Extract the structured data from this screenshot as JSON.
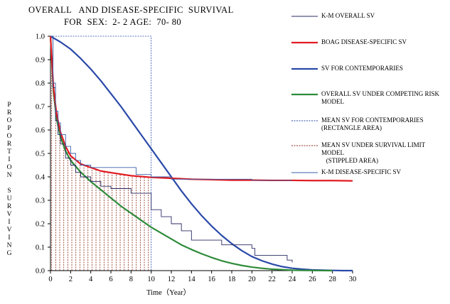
{
  "title_line1": "OVERALL   AND DISEASE-SPECIFIC  SURVIVAL",
  "title_line2": "FOR  SEX:  2- 2 AGE:  70- 80",
  "legend": [
    {
      "key": "km_overall",
      "text": "K-M OVERALL SV",
      "color": "#2a2a66",
      "style": "thin"
    },
    {
      "key": "boag",
      "text": "BOAG DISEASE-SPECIFIC SV",
      "color": "#e11b22",
      "style": "thick"
    },
    {
      "key": "contemporaries",
      "text": "SV FOR CONTEMPORARIES",
      "color": "#2a4aa8",
      "style": "thick"
    },
    {
      "key": "competing",
      "text": "OVERALL SV UNDER COMPETING RISK\nMODEL",
      "color": "#2e8b3a",
      "style": "thick"
    },
    {
      "key": "mean_contemp",
      "text": "MEAN SV FOR CONTEMPORARIES\n(RECTANGLE AREA)",
      "color": "#2a4aa8",
      "style": "dashed"
    },
    {
      "key": "mean_limit",
      "text": "MEAN SV UNDER SURVIVAL LIMIT\nMODEL\n   (STIPPLED AREA)",
      "color": "#8b2a1a",
      "style": "dashed"
    },
    {
      "key": "km_disease",
      "text": "K-M DISEASE-SPECIFIC SV",
      "color": "#3a5fa8",
      "style": "thin"
    }
  ],
  "ylabel_letters": [
    "P",
    "R",
    "O",
    "P",
    "O",
    "R",
    "T",
    "I",
    "O",
    "N",
    "",
    "S",
    "U",
    "R",
    "V",
    "I",
    "V",
    "I",
    "N",
    "G"
  ],
  "xlabel": "Time（Year）",
  "chart_data": {
    "type": "line",
    "title": "OVERALL AND DISEASE-SPECIFIC SURVIVAL FOR SEX: 2- 2 AGE: 70- 80",
    "xlabel": "Time（Year）",
    "ylabel": "PROPORTION SURVIVING",
    "xlim": [
      0,
      30
    ],
    "ylim": [
      0,
      1.0
    ],
    "x_ticks": [
      0,
      2,
      4,
      6,
      8,
      10,
      12,
      14,
      16,
      18,
      20,
      22,
      24,
      26,
      28,
      30
    ],
    "y_ticks": [
      0.0,
      0.1,
      0.2,
      0.3,
      0.4,
      0.5,
      0.6,
      0.7,
      0.8,
      0.9,
      1.0
    ],
    "y_tick_labels": [
      "0.0",
      "0.1",
      "0.2",
      "0.3",
      "0.4",
      "0.5",
      "0.6",
      "0.7",
      "0.8",
      "0.9",
      "1.0"
    ],
    "series": [
      {
        "name": "K-M OVERALL SV",
        "kind": "step",
        "color": "#2a2a66",
        "x": [
          0,
          0.25,
          0.5,
          0.75,
          1.0,
          1.5,
          2.0,
          2.5,
          3.0,
          4.0,
          5.0,
          6.0,
          8.0,
          10.0,
          11.0,
          12.0,
          13.0,
          14.0,
          17.0,
          20.0,
          20.3,
          22.0,
          23.5,
          24.0
        ],
        "y": [
          1.0,
          0.78,
          0.64,
          0.58,
          0.54,
          0.48,
          0.45,
          0.42,
          0.4,
          0.38,
          0.36,
          0.35,
          0.33,
          0.26,
          0.23,
          0.2,
          0.17,
          0.13,
          0.11,
          0.095,
          0.065,
          0.065,
          0.045,
          0.035
        ]
      },
      {
        "name": "BOAG DISEASE-SPECIFIC SV",
        "kind": "smooth",
        "color": "#e11b22",
        "x": [
          0,
          0.3,
          0.6,
          1,
          1.5,
          2,
          3,
          4,
          5,
          6,
          8,
          10,
          12,
          14,
          16,
          18,
          20,
          22,
          24,
          26,
          28,
          30
        ],
        "y": [
          1.0,
          0.78,
          0.67,
          0.59,
          0.53,
          0.49,
          0.455,
          0.44,
          0.425,
          0.418,
          0.405,
          0.398,
          0.394,
          0.39,
          0.388,
          0.386,
          0.386,
          0.385,
          0.385,
          0.384,
          0.384,
          0.383
        ]
      },
      {
        "name": "SV FOR CONTEMPORARIES",
        "kind": "smooth",
        "color": "#2a4aa8",
        "x": [
          0,
          1,
          2,
          3,
          4,
          5,
          6,
          7,
          8,
          9,
          10,
          11,
          12,
          13,
          14,
          15,
          16,
          17,
          18,
          19,
          20,
          21,
          22,
          23,
          24,
          25,
          26,
          27,
          28,
          29,
          30
        ],
        "y": [
          1.0,
          0.975,
          0.945,
          0.905,
          0.86,
          0.81,
          0.755,
          0.7,
          0.64,
          0.58,
          0.52,
          0.46,
          0.4,
          0.34,
          0.285,
          0.235,
          0.19,
          0.15,
          0.115,
          0.085,
          0.06,
          0.042,
          0.028,
          0.017,
          0.01,
          0.006,
          0.003,
          0.002,
          0.001,
          0.0,
          0.0
        ]
      },
      {
        "name": "OVERALL SV UNDER COMPETING RISK MODEL",
        "kind": "smooth",
        "color": "#2e8b3a",
        "x": [
          0,
          0.3,
          0.6,
          1,
          1.5,
          2,
          3,
          4,
          5,
          6,
          7,
          8,
          9,
          10,
          11,
          12,
          13,
          14,
          15,
          16,
          17,
          18,
          19,
          20,
          21,
          22,
          23,
          24,
          25,
          26,
          27,
          28
        ],
        "y": [
          1.0,
          0.76,
          0.65,
          0.57,
          0.51,
          0.47,
          0.42,
          0.38,
          0.345,
          0.31,
          0.275,
          0.245,
          0.215,
          0.185,
          0.16,
          0.135,
          0.11,
          0.09,
          0.072,
          0.056,
          0.042,
          0.031,
          0.022,
          0.015,
          0.01,
          0.006,
          0.004,
          0.002,
          0.001,
          0.0005,
          0.0002,
          0.0
        ]
      },
      {
        "name": "K-M DISEASE-SPECIFIC SV",
        "kind": "step",
        "color": "#3a5fa8",
        "x": [
          0,
          0.25,
          0.5,
          0.75,
          1.0,
          1.5,
          2.0,
          2.5,
          3.0,
          4.0,
          6.0,
          8.0,
          8.5,
          10.0,
          12.0,
          14.0,
          17.0,
          20.0,
          24.0
        ],
        "y": [
          1.0,
          0.8,
          0.68,
          0.63,
          0.58,
          0.53,
          0.5,
          0.47,
          0.45,
          0.44,
          0.44,
          0.44,
          0.41,
          0.4,
          0.39,
          0.39,
          0.39,
          0.385,
          0.385
        ]
      }
    ],
    "mean_contemporaries_rectangle": {
      "x0": 0,
      "x1": 10,
      "y0": 0,
      "y1": 1.0,
      "color": "#2a4aa8"
    },
    "mean_limit_stippled": {
      "x0": 0,
      "x1": 10,
      "color": "#8b2a1a"
    },
    "legend_position": "right"
  }
}
